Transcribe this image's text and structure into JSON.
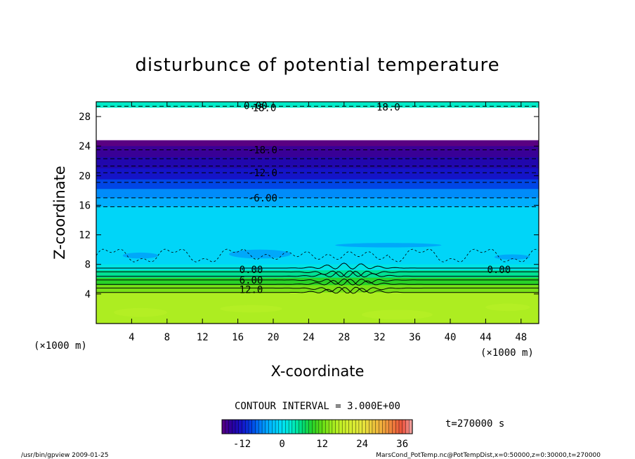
{
  "chart_data": {
    "type": "heatmap",
    "title": "disturbunce of potential temperature",
    "xlabel": "X-coordinate",
    "ylabel": "Z-coordinate",
    "x_unit": "(×1000 m)",
    "y_unit": "(×1000 m)",
    "xlim": [
      0,
      50
    ],
    "ylim": [
      0,
      30
    ],
    "xticks": [
      4,
      8,
      12,
      16,
      20,
      24,
      28,
      32,
      36,
      40,
      44,
      48
    ],
    "yticks": [
      4,
      8,
      12,
      16,
      20,
      24,
      28
    ],
    "contour_interval_text": "CONTOUR INTERVAL = 3.000E+00",
    "time_text": "t=270000 s",
    "colorbar": {
      "ticks": [
        "-12",
        "0",
        "12",
        "24",
        "36"
      ],
      "range": [
        -18,
        39
      ]
    },
    "contour_labels": [
      {
        "text": "0.00",
        "x": 18,
        "z": 29.5
      },
      {
        "text": "18.0",
        "x": 19,
        "z": 29.2
      },
      {
        "text": "18.0",
        "x": 33,
        "z": 29.3
      },
      {
        "text": "-18.0",
        "x": 18.8,
        "z": 23.5
      },
      {
        "text": "-12.0",
        "x": 18.8,
        "z": 20.4
      },
      {
        "text": "-6.00",
        "x": 18.8,
        "z": 17.0
      },
      {
        "text": "0.00",
        "x": 17.5,
        "z": 7.3
      },
      {
        "text": "0.00",
        "x": 45.5,
        "z": 7.3
      },
      {
        "text": "6.00",
        "x": 17.5,
        "z": 5.9
      },
      {
        "text": "12.0",
        "x": 17.5,
        "z": 4.6
      }
    ],
    "bands": [
      {
        "z0": 29.2,
        "z1": 30,
        "value": 3
      },
      {
        "z0": 24.8,
        "z1": 29.2,
        "value": null
      },
      {
        "z0": 24.0,
        "z1": 24.8,
        "value": -18
      },
      {
        "z0": 22.5,
        "z1": 24.0,
        "value": -16
      },
      {
        "z0": 21.0,
        "z1": 22.5,
        "value": -14
      },
      {
        "z0": 19.5,
        "z1": 21.0,
        "value": -12
      },
      {
        "z0": 18.2,
        "z1": 19.5,
        "value": -9
      },
      {
        "z0": 17.0,
        "z1": 18.2,
        "value": -6
      },
      {
        "z0": 15.8,
        "z1": 17.0,
        "value": -4
      },
      {
        "z0": 8.0,
        "z1": 15.8,
        "value": -1
      },
      {
        "z0": 7.2,
        "z1": 8.0,
        "value": 1
      },
      {
        "z0": 6.2,
        "z1": 7.2,
        "value": 5
      },
      {
        "z0": 5.2,
        "z1": 6.2,
        "value": 9
      },
      {
        "z0": 4.2,
        "z1": 5.2,
        "value": 13
      },
      {
        "z0": 0.0,
        "z1": 4.2,
        "value": 16
      }
    ],
    "dashed_contours_z": [
      29.4,
      23.5,
      22.3,
      21.3,
      20.4,
      19.1,
      17.0,
      15.8
    ],
    "solid_contours_z": [
      7.5,
      7.0,
      6.4,
      5.9,
      5.3,
      4.8,
      4.2
    ]
  },
  "footer": {
    "left": "/usr/bin/gpview   2009-01-25",
    "right": "MarsCond_PotTemp.nc@PotTempDist,x=0:50000,z=0:30000,t=270000"
  }
}
